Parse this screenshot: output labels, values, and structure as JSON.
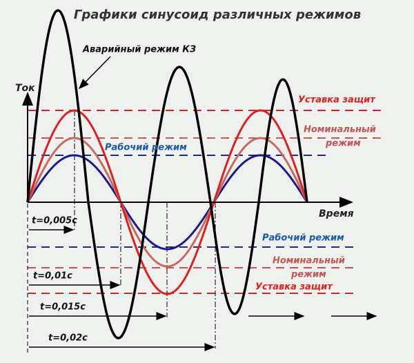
{
  "header": {
    "title": "Графики синусоид различных режимов"
  },
  "axes": {
    "y_label": "Ток",
    "x_label": "Время"
  },
  "annotations": {
    "fault": "Аварийный режим КЗ",
    "setpoint_top": "Уставка защит",
    "nominal_top": [
      "Номинальный",
      "режим"
    ],
    "working_top": "Рабочий режим",
    "working_bottom": "Рабочий режим",
    "nominal_bottom": [
      "Номинальный",
      "режим"
    ],
    "setpoint_bottom": "Уставка защит"
  },
  "times": [
    "t=0,005с",
    "t=0,01с",
    "t=0,015с",
    "t=0,02с"
  ]
}
